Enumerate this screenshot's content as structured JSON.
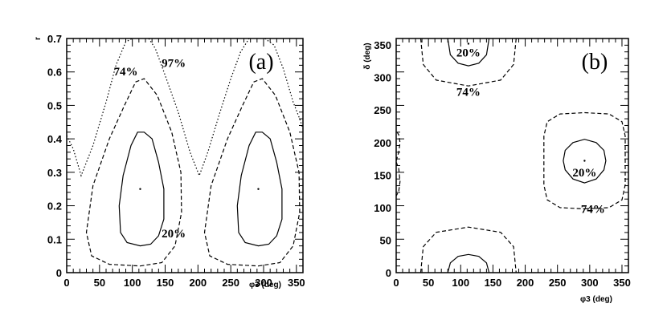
{
  "chart_data": [
    {
      "panel": "(a)",
      "type": "contour",
      "xlabel": "φ3 (deg)",
      "ylabel": "r",
      "xlim": [
        0,
        360
      ],
      "ylim": [
        0,
        0.7
      ],
      "xticks": [
        "0",
        "50",
        "100",
        "150",
        "200",
        "250",
        "300",
        "350"
      ],
      "yticks": [
        "0",
        "0.1",
        "0.2",
        "0.3",
        "0.4",
        "0.5",
        "0.6",
        "0.7"
      ],
      "contour_labels": [
        "20%",
        "74%",
        "97%"
      ],
      "best_fit_points": [
        [
          112,
          0.25
        ],
        [
          292,
          0.25
        ]
      ],
      "contours": [
        {
          "level": "20%",
          "style": "solid",
          "loops": [
            [
              [
                112,
                0.08
              ],
              [
                128,
                0.085
              ],
              [
                140,
                0.11
              ],
              [
                148,
                0.16
              ],
              [
                148,
                0.25
              ],
              [
                140,
                0.33
              ],
              [
                130,
                0.4
              ],
              [
                118,
                0.42
              ],
              [
                108,
                0.42
              ],
              [
                98,
                0.38
              ],
              [
                86,
                0.29
              ],
              [
                80,
                0.2
              ],
              [
                82,
                0.12
              ],
              [
                92,
                0.09
              ],
              [
                112,
                0.08
              ]
            ],
            [
              [
                292,
                0.08
              ],
              [
                308,
                0.085
              ],
              [
                320,
                0.11
              ],
              [
                328,
                0.16
              ],
              [
                328,
                0.25
              ],
              [
                320,
                0.33
              ],
              [
                310,
                0.4
              ],
              [
                298,
                0.42
              ],
              [
                288,
                0.42
              ],
              [
                278,
                0.38
              ],
              [
                266,
                0.29
              ],
              [
                260,
                0.2
              ],
              [
                262,
                0.12
              ],
              [
                272,
                0.09
              ],
              [
                292,
                0.08
              ]
            ]
          ]
        },
        {
          "level": "74%",
          "style": "dashed",
          "loops": [
            [
              [
                112,
                0.02
              ],
              [
                145,
                0.03
              ],
              [
                165,
                0.08
              ],
              [
                175,
                0.18
              ],
              [
                174,
                0.3
              ],
              [
                160,
                0.42
              ],
              [
                138,
                0.53
              ],
              [
                118,
                0.58
              ],
              [
                105,
                0.57
              ],
              [
                88,
                0.5
              ],
              [
                65,
                0.4
              ],
              [
                40,
                0.26
              ],
              [
                30,
                0.12
              ],
              [
                38,
                0.05
              ],
              [
                65,
                0.025
              ],
              [
                112,
                0.02
              ]
            ],
            [
              [
                292,
                0.02
              ],
              [
                325,
                0.03
              ],
              [
                345,
                0.08
              ],
              [
                355,
                0.18
              ],
              [
                354,
                0.3
              ],
              [
                340,
                0.42
              ],
              [
                318,
                0.53
              ],
              [
                298,
                0.58
              ],
              [
                285,
                0.57
              ],
              [
                268,
                0.5
              ],
              [
                245,
                0.4
              ],
              [
                220,
                0.26
              ],
              [
                210,
                0.12
              ],
              [
                218,
                0.05
              ],
              [
                245,
                0.025
              ],
              [
                292,
                0.02
              ]
            ]
          ]
        },
        {
          "level": "97%",
          "style": "dotted",
          "lines": [
            [
              [
                0,
                0.41
              ],
              [
                10,
                0.37
              ],
              [
                22,
                0.29
              ],
              [
                40,
                0.38
              ],
              [
                60,
                0.51
              ],
              [
                75,
                0.62
              ],
              [
                90,
                0.69
              ],
              [
                100,
                0.7
              ]
            ],
            [
              [
                125,
                0.7
              ],
              [
                135,
                0.67
              ],
              [
                150,
                0.59
              ],
              [
                170,
                0.48
              ],
              [
                188,
                0.36
              ],
              [
                202,
                0.29
              ],
              [
                215,
                0.36
              ],
              [
                232,
                0.47
              ],
              [
                250,
                0.58
              ],
              [
                265,
                0.66
              ],
              [
                278,
                0.7
              ]
            ],
            [
              [
                302,
                0.7
              ],
              [
                316,
                0.68
              ],
              [
                330,
                0.61
              ],
              [
                345,
                0.51
              ],
              [
                355,
                0.46
              ],
              [
                360,
                0.43
              ]
            ]
          ]
        }
      ]
    },
    {
      "panel": "(b)",
      "type": "contour",
      "xlabel": "φ3 (deg)",
      "ylabel": "δ (deg)",
      "xlim": [
        0,
        360
      ],
      "ylim": [
        0,
        360
      ],
      "xticks": [
        "0",
        "50",
        "100",
        "150",
        "200",
        "250",
        "300",
        "350"
      ],
      "yticks": [
        "0",
        "50",
        "100",
        "150",
        "200",
        "250",
        "300",
        "350"
      ],
      "contour_labels": [
        "20%",
        "74%",
        "20%",
        "74%"
      ],
      "best_fit_points": [
        [
          112,
          352
        ],
        [
          292,
          172
        ]
      ],
      "contours": [
        {
          "level": "20%",
          "style": "solid",
          "lines": [
            [
              [
                80,
                360
              ],
              [
                84,
                335
              ],
              [
                96,
                322
              ],
              [
                112,
                318
              ],
              [
                128,
                322
              ],
              [
                140,
                335
              ],
              [
                144,
                360
              ]
            ],
            [
              [
                80,
                0
              ],
              [
                84,
                15
              ],
              [
                96,
                25
              ],
              [
                112,
                28
              ],
              [
                128,
                25
              ],
              [
                140,
                15
              ],
              [
                144,
                0
              ]
            ]
          ],
          "loops": [
            [
              [
                292,
                138
              ],
              [
                310,
                144
              ],
              [
                322,
                158
              ],
              [
                325,
                172
              ],
              [
                322,
                188
              ],
              [
                310,
                200
              ],
              [
                292,
                205
              ],
              [
                274,
                200
              ],
              [
                262,
                188
              ],
              [
                259,
                172
              ],
              [
                262,
                158
              ],
              [
                274,
                144
              ],
              [
                292,
                138
              ]
            ]
          ]
        },
        {
          "level": "74%",
          "style": "dashed",
          "lines": [
            [
              [
                38,
                360
              ],
              [
                42,
                320
              ],
              [
                62,
                296
              ],
              [
                112,
                287
              ],
              [
                162,
                296
              ],
              [
                182,
                320
              ],
              [
                186,
                360
              ]
            ],
            [
              [
                38,
                0
              ],
              [
                42,
                40
              ],
              [
                62,
                62
              ],
              [
                112,
                70
              ],
              [
                162,
                62
              ],
              [
                182,
                40
              ],
              [
                186,
                0
              ]
            ],
            [
              [
                0,
                170
              ],
              [
                4,
                160
              ],
              [
                6,
                140
              ],
              [
                4,
                125
              ],
              [
                0,
                118
              ]
            ],
            [
              [
                0,
                172
              ],
              [
                4,
                185
              ],
              [
                6,
                200
              ],
              [
                4,
                212
              ],
              [
                0,
                218
              ]
            ]
          ],
          "loops": [
            [
              [
                292,
                98
              ],
              [
                330,
                100
              ],
              [
                350,
                112
              ],
              [
                355,
                135
              ],
              [
                355,
                210
              ],
              [
                350,
                232
              ],
              [
                330,
                244
              ],
              [
                292,
                246
              ],
              [
                254,
                244
              ],
              [
                234,
                232
              ],
              [
                229,
                210
              ],
              [
                229,
                135
              ],
              [
                234,
                112
              ],
              [
                254,
                100
              ],
              [
                292,
                98
              ]
            ]
          ]
        }
      ]
    }
  ]
}
